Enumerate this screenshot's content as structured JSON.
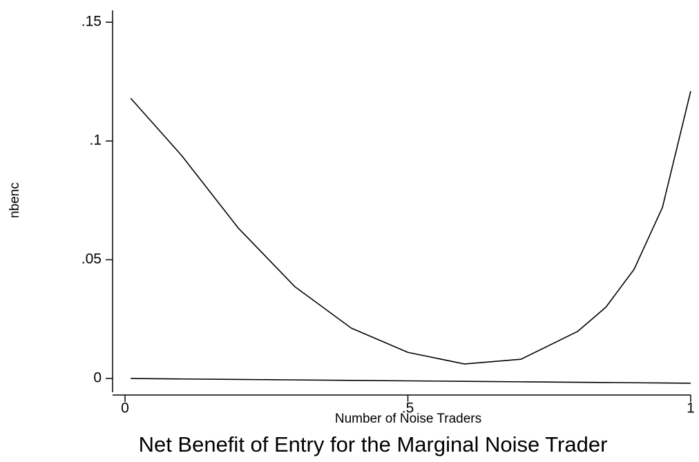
{
  "chart_data": {
    "type": "line",
    "title": "Net Benefit of Entry for the Marginal Noise Trader",
    "xlabel": "Number of Noise Traders",
    "ylabel": "nbenc",
    "x": [
      0.01,
      0.1,
      0.2,
      0.3,
      0.4,
      0.5,
      0.6,
      0.7,
      0.8,
      0.85,
      0.9,
      0.95,
      1.0
    ],
    "series": [
      {
        "color": "#000000",
        "values": [
          0.118,
          0.0939,
          0.0634,
          0.0387,
          0.0212,
          0.011,
          0.0061,
          0.0081,
          0.0198,
          0.03,
          0.046,
          0.072,
          0.121
        ]
      },
      {
        "color": "#000000",
        "values": [
          0,
          -0.0002,
          -0.0004,
          -0.0006,
          -0.0008,
          -0.001,
          -0.0012,
          -0.0014,
          -0.0016,
          -0.0017,
          -0.0018,
          -0.0019,
          -0.002
        ]
      }
    ],
    "xlim": [
      -0.022,
      1.0
    ],
    "ylim": [
      -0.0058,
      0.155
    ],
    "xticks": [
      0,
      {
        "value": 0.5,
        "label": ".5"
      },
      1
    ],
    "yticks": [
      0,
      {
        "value": 0.05,
        "label": ".05"
      },
      {
        "value": 0.1,
        "label": ".1"
      },
      {
        "value": 0.15,
        "label": ".15"
      }
    ],
    "grid": false
  }
}
